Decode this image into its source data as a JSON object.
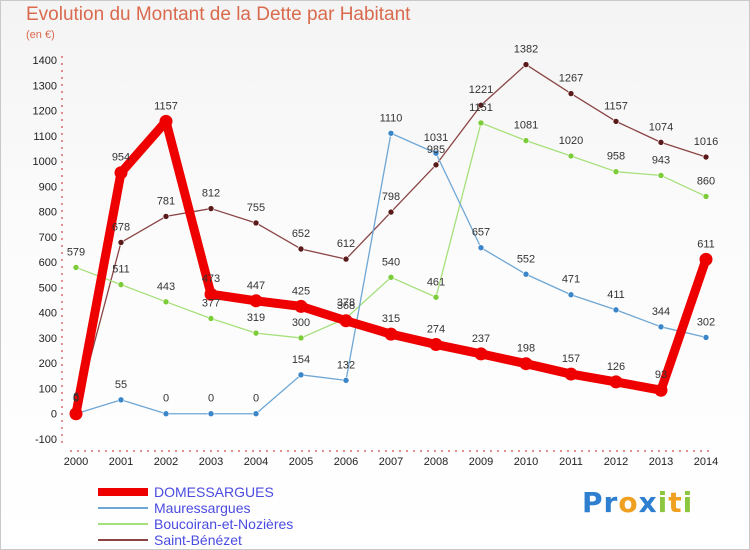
{
  "title": "Evolution du Montant de la Dette par Habitant",
  "unit": "(en €)",
  "logo": {
    "letters": [
      {
        "ch": "P",
        "color": "#2f7fd0"
      },
      {
        "ch": "r",
        "color": "#2f7fd0"
      },
      {
        "ch": "o",
        "color": "#f0a020"
      },
      {
        "ch": "x",
        "color": "#2f7fd0"
      },
      {
        "ch": "i",
        "color": "#8cc63f"
      },
      {
        "ch": "t",
        "color": "#f0a020"
      },
      {
        "ch": "i",
        "color": "#8cc63f"
      }
    ]
  },
  "chart_data": {
    "type": "line",
    "title": "Evolution du Montant de la Dette par Habitant",
    "ylabel": "(en €)",
    "xlabel": "",
    "x": [
      "2000",
      "2001",
      "2002",
      "2003",
      "2004",
      "2005",
      "2006",
      "2007",
      "2008",
      "2009",
      "2010",
      "2011",
      "2012",
      "2013",
      "2014"
    ],
    "yticks": [
      -100,
      0,
      100,
      200,
      300,
      400,
      500,
      600,
      700,
      800,
      900,
      1000,
      1100,
      1200,
      1300,
      1400
    ],
    "ylim": [
      -100,
      1400
    ],
    "grid": false,
    "legend_position": "bottom-left",
    "series": [
      {
        "name": "DOMESSARGUES",
        "color": "#ee0000",
        "marker": "#ee0000",
        "bold": true,
        "values": [
          0,
          954,
          1157,
          473,
          447,
          425,
          368,
          315,
          274,
          237,
          198,
          157,
          126,
          93,
          611
        ]
      },
      {
        "name": "Mauressargues",
        "color": "#6ea6d4",
        "marker": "#3a86c8",
        "bold": false,
        "values": [
          0,
          55,
          0,
          0,
          0,
          154,
          132,
          1110,
          1031,
          657,
          552,
          471,
          411,
          344,
          302
        ]
      },
      {
        "name": "Boucoiran-et-Nozières",
        "color": "#a6e07a",
        "marker": "#7ccc3a",
        "bold": false,
        "values": [
          579,
          511,
          443,
          377,
          319,
          300,
          378,
          540,
          461,
          1151,
          1081,
          1020,
          958,
          943,
          860
        ]
      },
      {
        "name": "Saint-Bénézet",
        "color": "#8a4444",
        "marker": "#5a1a1a",
        "bold": false,
        "values": [
          6,
          678,
          781,
          812,
          755,
          652,
          612,
          798,
          985,
          1221,
          1382,
          1267,
          1157,
          1074,
          1016
        ]
      }
    ]
  }
}
